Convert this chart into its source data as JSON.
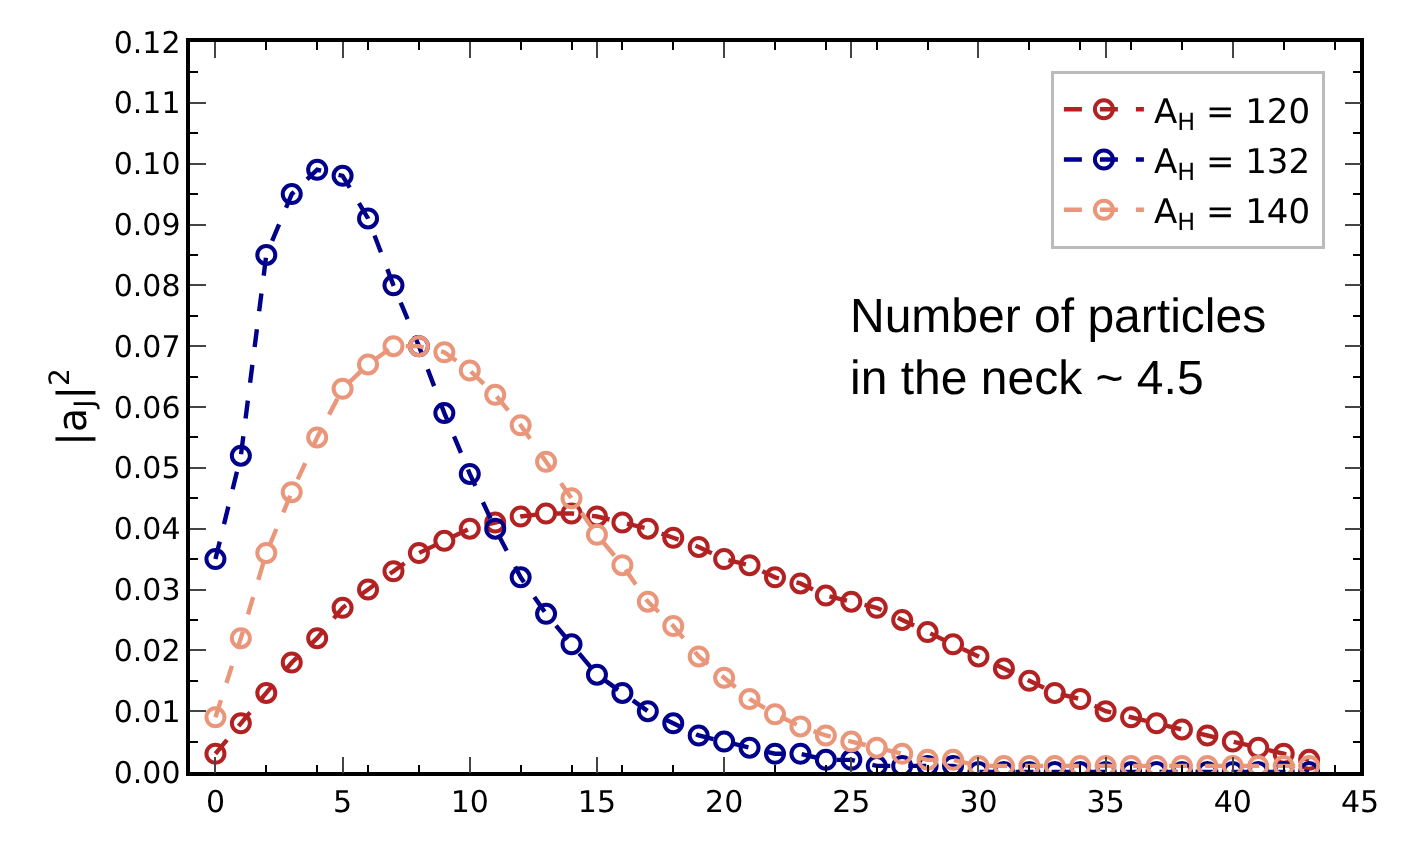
{
  "chart_data": {
    "type": "line",
    "xlabel": null,
    "ylabel": "|a$_{J}$|$^{2}$",
    "x": [
      0,
      1,
      2,
      3,
      4,
      5,
      6,
      7,
      8,
      9,
      10,
      11,
      12,
      13,
      14,
      15,
      16,
      17,
      18,
      19,
      20,
      21,
      22,
      23,
      24,
      25,
      26,
      27,
      28,
      29,
      30,
      31,
      32,
      33,
      34,
      35,
      36,
      37,
      38,
      39,
      40,
      41,
      42,
      43
    ],
    "series": [
      {
        "name": "A$_{H}$ = 120",
        "color": "#b22222",
        "values": [
          0.003,
          0.008,
          0.013,
          0.018,
          0.022,
          0.027,
          0.03,
          0.033,
          0.036,
          0.038,
          0.04,
          0.041,
          0.042,
          0.0425,
          0.0425,
          0.042,
          0.041,
          0.04,
          0.0385,
          0.037,
          0.035,
          0.034,
          0.032,
          0.031,
          0.029,
          0.028,
          0.027,
          0.025,
          0.023,
          0.021,
          0.019,
          0.017,
          0.015,
          0.013,
          0.012,
          0.01,
          0.009,
          0.008,
          0.007,
          0.006,
          0.005,
          0.004,
          0.003,
          0.002
        ]
      },
      {
        "name": "A$_{H}$ = 132",
        "color": "#00008b",
        "values": [
          0.035,
          0.052,
          0.085,
          0.095,
          0.099,
          0.098,
          0.091,
          0.08,
          0.07,
          0.059,
          0.049,
          0.04,
          0.032,
          0.026,
          0.021,
          0.016,
          0.013,
          0.01,
          0.008,
          0.006,
          0.005,
          0.004,
          0.003,
          0.003,
          0.002,
          0.002,
          0.001,
          0.001,
          0.001,
          0.001,
          0.0,
          0.0,
          0.0,
          0.0,
          0.0,
          0.0,
          0.0,
          0.0,
          0.0,
          0.0,
          0.0,
          0.0,
          0.0,
          0.0
        ]
      },
      {
        "name": "A$_{H}$ = 140",
        "color": "#e9967a",
        "values": [
          0.009,
          0.022,
          0.036,
          0.046,
          0.055,
          0.063,
          0.067,
          0.07,
          0.07,
          0.069,
          0.066,
          0.062,
          0.057,
          0.051,
          0.045,
          0.039,
          0.034,
          0.028,
          0.024,
          0.019,
          0.0155,
          0.012,
          0.0095,
          0.0075,
          0.006,
          0.005,
          0.004,
          0.003,
          0.002,
          0.002,
          0.001,
          0.001,
          0.001,
          0.001,
          0.001,
          0.001,
          0.001,
          0.001,
          0.001,
          0.001,
          0.001,
          0.001,
          0.001,
          0.001
        ]
      }
    ],
    "xlim": [
      -1,
      45
    ],
    "xticks": [
      0,
      5,
      10,
      15,
      20,
      25,
      30,
      35,
      40,
      45
    ],
    "ylim": [
      0,
      0.12
    ],
    "yticks": [
      {
        "value": 0,
        "label": "0.00"
      },
      {
        "value": 0.01,
        "label": "0.01"
      },
      {
        "value": 0.02,
        "label": "0.02"
      },
      {
        "value": 0.03,
        "label": "0.03"
      },
      {
        "value": 0.04,
        "label": "0.04"
      },
      {
        "value": 0.05,
        "label": "0.05"
      },
      {
        "value": 0.06,
        "label": "0.06"
      },
      {
        "value": 0.07,
        "label": "0.07"
      },
      {
        "value": 0.08,
        "label": "0.08"
      },
      {
        "value": 0.09,
        "label": "0.09"
      },
      {
        "value": 0.1,
        "label": "0.10"
      },
      {
        "value": 0.11,
        "label": "0.11"
      },
      {
        "value": 0.12,
        "label": "0.12"
      }
    ],
    "annotations": [
      "Number of particles\nin the neck ~ 4.5"
    ],
    "legend": "top right",
    "marker": "circle",
    "line_style": "dashed"
  }
}
